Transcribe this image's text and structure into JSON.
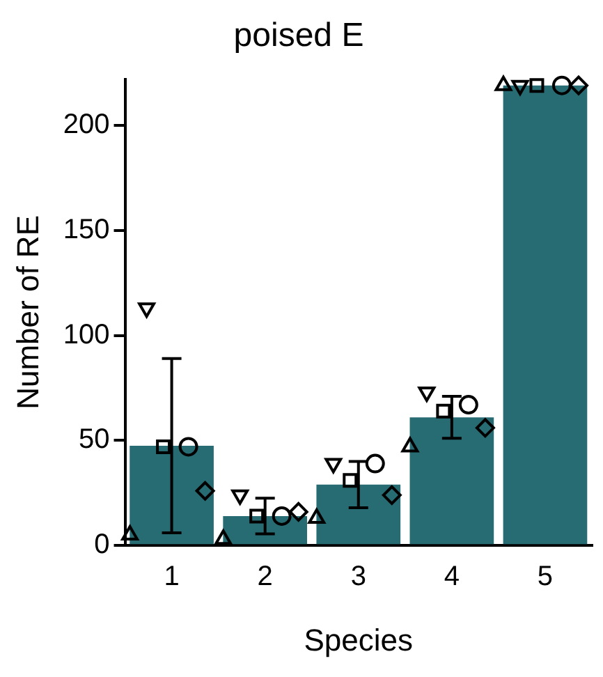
{
  "chart_data": {
    "type": "bar",
    "title": "poised E",
    "xlabel": "Species",
    "ylabel": "Number of RE",
    "categories": [
      "1",
      "2",
      "3",
      "4",
      "5"
    ],
    "ylim": [
      0,
      222
    ],
    "yticks": [
      0,
      50,
      100,
      150,
      200
    ],
    "grid": false,
    "legend": false,
    "series": [
      {
        "color": "#276b73",
        "values": [
          47.5,
          14,
          29,
          61,
          219
        ],
        "errors": [
          41.5,
          8.5,
          11,
          10,
          null
        ]
      },
      {
        "type": "scatter",
        "marker": "square",
        "color": "#000000",
        "x": [
          "1",
          "2",
          "3",
          "4",
          "5"
        ],
        "values": [
          47,
          14,
          31,
          64,
          219
        ]
      },
      {
        "type": "scatter",
        "marker": "circle",
        "color": "#000000",
        "x": [
          "1",
          "2",
          "3",
          "4",
          "5"
        ],
        "values": [
          47,
          14,
          39,
          67,
          219
        ]
      },
      {
        "type": "scatter",
        "marker": "triangle_down",
        "color": "#000000",
        "x": [
          "1",
          "2",
          "3",
          "4",
          "5"
        ],
        "values": [
          113,
          24,
          39,
          73,
          219
        ]
      },
      {
        "type": "scatter",
        "marker": "diamond",
        "color": "#000000",
        "x": [
          "1",
          "2",
          "3",
          "4",
          "5"
        ],
        "values": [
          26,
          16,
          24,
          56,
          219
        ]
      },
      {
        "type": "scatter",
        "marker": "triangle",
        "color": "#000000",
        "x": [
          "1",
          "2",
          "3",
          "4",
          "5"
        ],
        "values": [
          5,
          3,
          13,
          47,
          219
        ]
      }
    ]
  }
}
